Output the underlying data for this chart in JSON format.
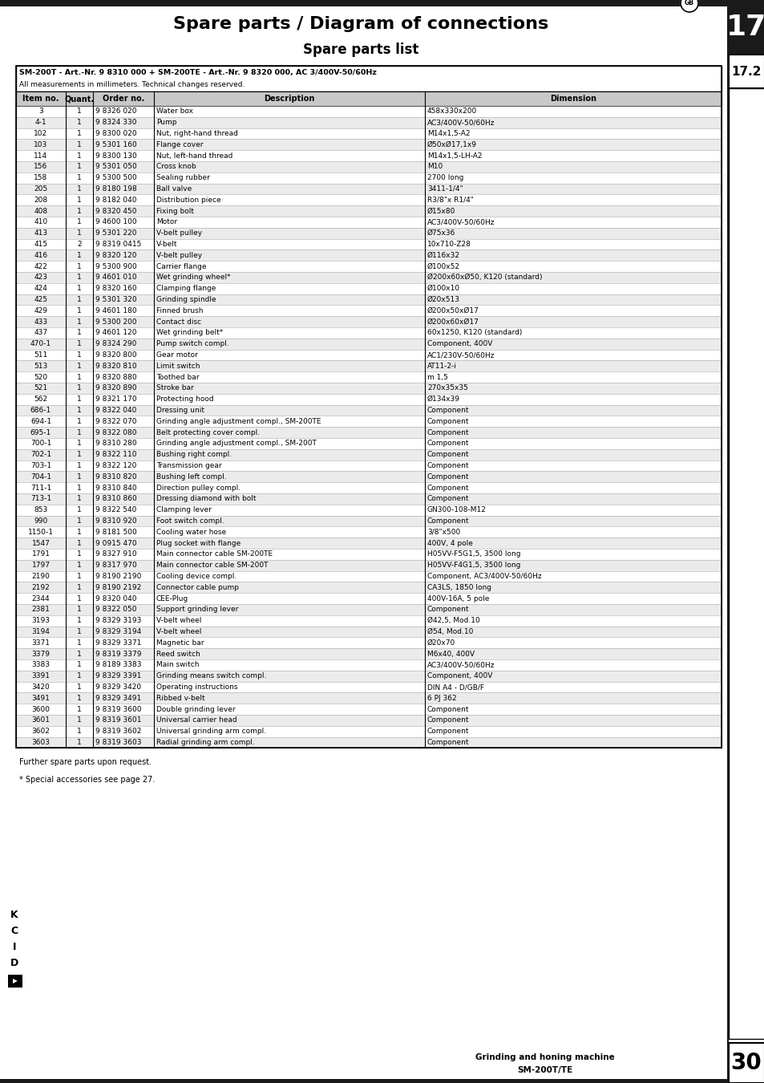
{
  "title": "Spare parts / Diagram of connections",
  "subtitle": "Spare parts list",
  "chapter_number": "17",
  "section_number": "17.2",
  "page_number": "30",
  "footer_line1": "Grinding and honing machine",
  "footer_line2": "SM-200T/TE",
  "header_note": "GB",
  "table_header_line1": "SM-200T - Art.-Nr. 9 8310 000 + SM-200TE - Art.-Nr. 9 8320 000, AC 3/400V-50/60Hz",
  "table_header_line2": "All measurements in millimeters. Technical changes reserved.",
  "col_headers": [
    "Item no.",
    "Quant.",
    "Order no.",
    "Description",
    "Dimension"
  ],
  "rows": [
    [
      "3",
      "1",
      "9 8326 020",
      "Water box",
      "458x330x200"
    ],
    [
      "4-1",
      "1",
      "9 8324 330",
      "Pump",
      "AC3/400V-50/60Hz"
    ],
    [
      "102",
      "1",
      "9 8300 020",
      "Nut, right-hand thread",
      "M14x1,5-A2"
    ],
    [
      "103",
      "1",
      "9 5301 160",
      "Flange cover",
      "Ø50xØ17,1x9"
    ],
    [
      "114",
      "1",
      "9 8300 130",
      "Nut, left-hand thread",
      "M14x1,5-LH-A2"
    ],
    [
      "156",
      "1",
      "9 5301 050",
      "Cross knob",
      "M10"
    ],
    [
      "158",
      "1",
      "9 5300 500",
      "Sealing rubber",
      "2700 long"
    ],
    [
      "205",
      "1",
      "9 8180 198",
      "Ball valve",
      "3411-1/4\""
    ],
    [
      "208",
      "1",
      "9 8182 040",
      "Distribution piece",
      "R3/8\"x R1/4\""
    ],
    [
      "408",
      "1",
      "9 8320 450",
      "Fixing bolt",
      "Ø15x80"
    ],
    [
      "410",
      "1",
      "9 4600 100",
      "Motor",
      "AC3/400V-50/60Hz"
    ],
    [
      "413",
      "1",
      "9 5301 220",
      "V-belt pulley",
      "Ø75x36"
    ],
    [
      "415",
      "2",
      "9 8319 0415",
      "V-belt",
      "10x710-Z28"
    ],
    [
      "416",
      "1",
      "9 8320 120",
      "V-belt pulley",
      "Ø116x32"
    ],
    [
      "422",
      "1",
      "9 5300 900",
      "Carrier flange",
      "Ø100x52"
    ],
    [
      "423",
      "1",
      "9 4601 010",
      "Wet grinding wheel*",
      "Ø200x60xØ50, K120 (standard)"
    ],
    [
      "424",
      "1",
      "9 8320 160",
      "Clamping flange",
      "Ø100x10"
    ],
    [
      "425",
      "1",
      "9 5301 320",
      "Grinding spindle",
      "Ø20x513"
    ],
    [
      "429",
      "1",
      "9 4601 180",
      "Finned brush",
      "Ø200x50xØ17"
    ],
    [
      "433",
      "1",
      "9 5300 200",
      "Contact disc",
      "Ø200x60xØ17"
    ],
    [
      "437",
      "1",
      "9 4601 120",
      "Wet grinding belt*",
      "60x1250, K120 (standard)"
    ],
    [
      "470-1",
      "1",
      "9 8324 290",
      "Pump switch compl.",
      "Component, 400V"
    ],
    [
      "511",
      "1",
      "9 8320 800",
      "Gear motor",
      "AC1/230V-50/60Hz"
    ],
    [
      "513",
      "1",
      "9 8320 810",
      "Limit switch",
      "AT11-2-i"
    ],
    [
      "520",
      "1",
      "9 8320 880",
      "Toothed bar",
      "m 1,5"
    ],
    [
      "521",
      "1",
      "9 8320 890",
      "Stroke bar",
      "270x35x35"
    ],
    [
      "562",
      "1",
      "9 8321 170",
      "Protecting hood",
      "Ø134x39"
    ],
    [
      "686-1",
      "1",
      "9 8322 040",
      "Dressing unit",
      "Component"
    ],
    [
      "694-1",
      "1",
      "9 8322 070",
      "Grinding angle adjustment compl., SM-200TE",
      "Component"
    ],
    [
      "695-1",
      "1",
      "9 8322 080",
      "Belt protecting cover compl.",
      "Component"
    ],
    [
      "700-1",
      "1",
      "9 8310 280",
      "Grinding angle adjustment compl., SM-200T",
      "Component"
    ],
    [
      "702-1",
      "1",
      "9 8322 110",
      "Bushing right compl.",
      "Component"
    ],
    [
      "703-1",
      "1",
      "9 8322 120",
      "Transmission gear",
      "Component"
    ],
    [
      "704-1",
      "1",
      "9 8310 820",
      "Bushing left compl.",
      "Component"
    ],
    [
      "711-1",
      "1",
      "9 8310 840",
      "Direction pulley compl.",
      "Component"
    ],
    [
      "713-1",
      "1",
      "9 8310 860",
      "Dressing diamond with bolt",
      "Component"
    ],
    [
      "853",
      "1",
      "9 8322 540",
      "Clamping lever",
      "GN300-108-M12"
    ],
    [
      "990",
      "1",
      "9 8310 920",
      "Foot switch compl.",
      "Component"
    ],
    [
      "1150-1",
      "1",
      "9 8181 500",
      "Cooling water hose",
      "3/8\"x500"
    ],
    [
      "1547",
      "1",
      "9 0915 470",
      "Plug socket with flange",
      "400V, 4 pole"
    ],
    [
      "1791",
      "1",
      "9 8327 910",
      "Main connector cable SM-200TE",
      "H05VV-F5G1,5, 3500 long"
    ],
    [
      "1797",
      "1",
      "9 8317 970",
      "Main connector cable SM-200T",
      "H05VV-F4G1,5, 3500 long"
    ],
    [
      "2190",
      "1",
      "9 8190 2190",
      "Cooling device compl.",
      "Component, AC3/400V-50/60Hz"
    ],
    [
      "2192",
      "1",
      "9 8190 2192",
      "Connector cable pump",
      "CA3LS, 1850 long"
    ],
    [
      "2344",
      "1",
      "9 8320 040",
      "CEE-Plug",
      "400V-16A, 5 pole"
    ],
    [
      "2381",
      "1",
      "9 8322 050",
      "Support grinding lever",
      "Component"
    ],
    [
      "3193",
      "1",
      "9 8329 3193",
      "V-belt wheel",
      "Ø42,5, Mod.10"
    ],
    [
      "3194",
      "1",
      "9 8329 3194",
      "V-belt wheel",
      "Ø54, Mod.10"
    ],
    [
      "3371",
      "1",
      "9 8329 3371",
      "Magnetic bar",
      "Ø20x70"
    ],
    [
      "3379",
      "1",
      "9 8319 3379",
      "Reed switch",
      "M6x40, 400V"
    ],
    [
      "3383",
      "1",
      "9 8189 3383",
      "Main switch",
      "AC3/400V-50/60Hz"
    ],
    [
      "3391",
      "1",
      "9 8329 3391",
      "Grinding means switch compl.",
      "Component, 400V"
    ],
    [
      "3420",
      "1",
      "9 8329 3420",
      "Operating instructions",
      "DIN A4 - D/GB/F"
    ],
    [
      "3491",
      "1",
      "9 8329 3491",
      "Ribbed v-belt",
      "6 PJ 362"
    ],
    [
      "3600",
      "1",
      "9 8319 3600",
      "Double grinding lever",
      "Component"
    ],
    [
      "3601",
      "1",
      "9 8319 3601",
      "Universal carrier head",
      "Component"
    ],
    [
      "3602",
      "1",
      "9 8319 3602",
      "Universal grinding arm compl.",
      "Component"
    ],
    [
      "3603",
      "1",
      "9 8319 3603",
      "Radial grinding arm compl.",
      "Component"
    ]
  ],
  "footnote1": "Further spare parts upon request.",
  "footnote2": "* Special accessories see page 27.",
  "bg_color": "#ffffff",
  "row_alt_color": "#ebebeb",
  "row_color": "#ffffff",
  "col_header_bg": "#c8c8c8"
}
